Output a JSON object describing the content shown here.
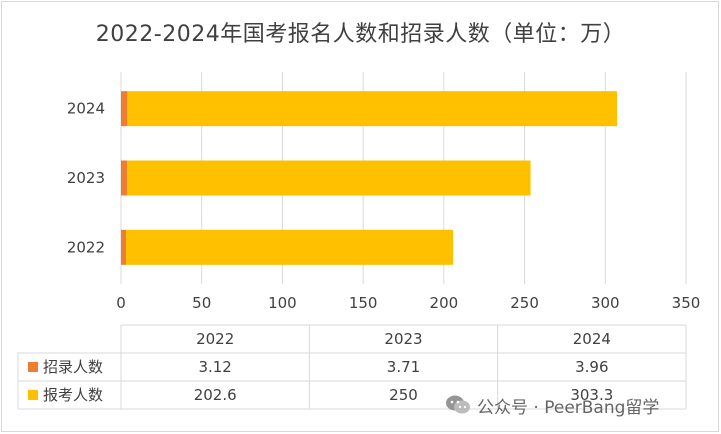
{
  "chart_data": {
    "type": "bar",
    "orientation": "horizontal",
    "stacked": true,
    "title": "2022-2024年国考报名人数和招录人数（单位：万）",
    "categories": [
      "2024",
      "2023",
      "2022"
    ],
    "table_header": [
      "2022",
      "2023",
      "2024"
    ],
    "series": [
      {
        "name": "招录人数",
        "color": "#ed7d31",
        "values": [
          3.96,
          3.71,
          3.12
        ]
      },
      {
        "name": "报考人数",
        "color": "#ffc000",
        "values": [
          303.3,
          250,
          202.6
        ]
      }
    ],
    "table_rows": [
      {
        "name": "招录人数",
        "color": "#ed7d31",
        "values": [
          "3.12",
          "3.71",
          "3.96"
        ]
      },
      {
        "name": "报考人数",
        "color": "#ffc000",
        "values": [
          "202.6",
          "250",
          "303.3"
        ]
      }
    ],
    "xlim": [
      0,
      350
    ],
    "xticks": [
      "0",
      "50",
      "100",
      "150",
      "200",
      "250",
      "300",
      "350"
    ],
    "grid": true,
    "legend": "data-table"
  },
  "watermark": {
    "text": "公众号 · PeerBang留学",
    "icon": "wechat-icon"
  }
}
